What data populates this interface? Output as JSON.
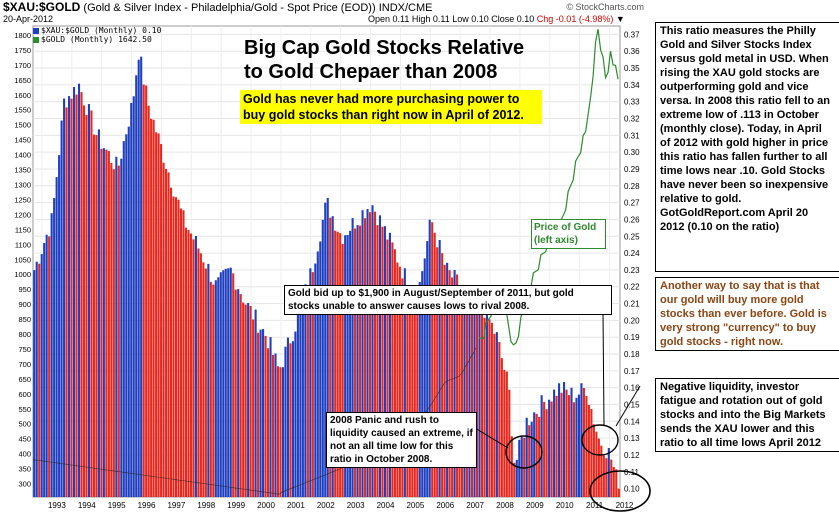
{
  "header": {
    "symbol": "$XAU:$GOLD",
    "description": "(Gold & Silver Index - Philadelphia/Gold - Spot Price (EOD))",
    "exchange": "INDX/CME",
    "brand": "© StockCharts.com",
    "date": "20-Apr-2012",
    "ohlc": "Open 0.11  High 0.11  Low 0.10  Close 0.10",
    "change": "Chg -0.01 (-4.98%)",
    "change_symbol": "▼"
  },
  "legend": [
    {
      "label": "$XAU:$GOLD (Monthly) 0.10",
      "color": "#1f3fbf"
    },
    {
      "label": "$GOLD (Monthly) 1642.50",
      "color": "#2e8b2e"
    }
  ],
  "annotations": {
    "main_title": "Big Cap Gold Stocks Relative to Gold Chepaer than 2008",
    "yellow_note": "Gold has never had more purchasing power to buy gold stocks than right now in April of 2012.",
    "gold_label": "Price of Gold (left axis)",
    "note_1900": "Gold bid up to $1,900 in August/September of 2011, but gold stocks unable to answer causes lows to rival 2008.",
    "note_2008": "2008 Panic and rush to liquidity caused an extreme, if not an all time low for this ratio in October 2008."
  },
  "side_notes": [
    "This ratio measures the Philly Gold and Silver Stocks Index versus gold metal in USD. When rising the XAU gold stocks are outperforming gold and vice versa. In 2008 this ratio fell to an extreme low of .113 in October (monthly close). Today, in April of 2012 with gold higher in price this ratio has fallen further to all time lows near .10. Gold Stocks have never been so inexpensive relative to gold. GotGoldReport.com April 20 2012 (0.10 on the ratio)",
    "Another way to say that is that our gold will buy more gold stocks than ever before. Gold is very strong \"currency\" to buy gold stocks - right now.",
    "Negative liquidity, investor fatigue and rotation out of gold stocks and into the Big Markets sends the XAU lower and this ratio to all time lows April 2012"
  ],
  "colors": {
    "up_bar": "#1f3fbf",
    "down_bar": "#e8281e",
    "gold_line": "#2e8b2e",
    "ratio_line": "#222222"
  },
  "chart_data": {
    "type": "bar",
    "title": "$XAU:$GOLD (Monthly)",
    "x_range": [
      "1992-09",
      "2012-04"
    ],
    "x_ticks": [
      "1993",
      "1994",
      "1995",
      "1996",
      "1997",
      "1998",
      "1999",
      "2000",
      "2001",
      "2002",
      "2003",
      "2004",
      "2005",
      "2006",
      "2007",
      "2008",
      "2009",
      "2010",
      "2011",
      "2012"
    ],
    "y_right_ticks": [
      0.1,
      0.11,
      0.12,
      0.13,
      0.14,
      0.15,
      0.16,
      0.17,
      0.18,
      0.19,
      0.2,
      0.21,
      0.22,
      0.23,
      0.24,
      0.25,
      0.26,
      0.27,
      0.28,
      0.29,
      0.3,
      0.31,
      0.32,
      0.33,
      0.34,
      0.35,
      0.36,
      0.37
    ],
    "y_right_range": [
      0.095,
      0.375
    ],
    "y_left_ticks": [
      300,
      350,
      400,
      450,
      500,
      550,
      600,
      650,
      700,
      750,
      800,
      850,
      900,
      950,
      1000,
      1050,
      1100,
      1150,
      1200,
      1250,
      1300,
      1350,
      1400,
      1450,
      1500,
      1550,
      1600,
      1650,
      1700,
      1750,
      1800
    ],
    "y_left_range": [
      255,
      1830
    ],
    "ratio_anchors": [
      {
        "t": 1992.7,
        "v": 0.23
      },
      {
        "t": 1993.3,
        "v": 0.26
      },
      {
        "t": 1993.7,
        "v": 0.33
      },
      {
        "t": 1994.2,
        "v": 0.34
      },
      {
        "t": 1994.8,
        "v": 0.31
      },
      {
        "t": 1995.5,
        "v": 0.29
      },
      {
        "t": 1996.0,
        "v": 0.33
      },
      {
        "t": 1996.2,
        "v": 0.36
      },
      {
        "t": 1996.5,
        "v": 0.33
      },
      {
        "t": 1997.0,
        "v": 0.3
      },
      {
        "t": 1997.7,
        "v": 0.26
      },
      {
        "t": 1998.3,
        "v": 0.24
      },
      {
        "t": 1998.8,
        "v": 0.22
      },
      {
        "t": 1999.3,
        "v": 0.23
      },
      {
        "t": 1999.8,
        "v": 0.21
      },
      {
        "t": 2000.5,
        "v": 0.19
      },
      {
        "t": 2000.9,
        "v": 0.17
      },
      {
        "t": 2001.5,
        "v": 0.2
      },
      {
        "t": 2002.0,
        "v": 0.23
      },
      {
        "t": 2002.5,
        "v": 0.27
      },
      {
        "t": 2003.0,
        "v": 0.25
      },
      {
        "t": 2003.5,
        "v": 0.26
      },
      {
        "t": 2004.0,
        "v": 0.27
      },
      {
        "t": 2004.8,
        "v": 0.24
      },
      {
        "t": 2005.5,
        "v": 0.21
      },
      {
        "t": 2006.0,
        "v": 0.26
      },
      {
        "t": 2006.5,
        "v": 0.23
      },
      {
        "t": 2007.0,
        "v": 0.22
      },
      {
        "t": 2007.7,
        "v": 0.21
      },
      {
        "t": 2008.2,
        "v": 0.19
      },
      {
        "t": 2008.6,
        "v": 0.16
      },
      {
        "t": 2008.8,
        "v": 0.113
      },
      {
        "t": 2009.2,
        "v": 0.14
      },
      {
        "t": 2009.7,
        "v": 0.15
      },
      {
        "t": 2010.3,
        "v": 0.16
      },
      {
        "t": 2010.8,
        "v": 0.155
      },
      {
        "t": 2011.2,
        "v": 0.16
      },
      {
        "t": 2011.6,
        "v": 0.13
      },
      {
        "t": 2012.0,
        "v": 0.12
      },
      {
        "t": 2012.3,
        "v": 0.1
      }
    ],
    "gold_anchors": [
      {
        "t": 2003.0,
        "v": 350
      },
      {
        "t": 2004.0,
        "v": 410
      },
      {
        "t": 2005.0,
        "v": 430
      },
      {
        "t": 2006.0,
        "v": 560
      },
      {
        "t": 2006.5,
        "v": 640
      },
      {
        "t": 2007.0,
        "v": 660
      },
      {
        "t": 2007.8,
        "v": 800
      },
      {
        "t": 2008.2,
        "v": 930
      },
      {
        "t": 2008.5,
        "v": 880
      },
      {
        "t": 2008.8,
        "v": 740
      },
      {
        "t": 2009.2,
        "v": 920
      },
      {
        "t": 2009.9,
        "v": 1100
      },
      {
        "t": 2010.3,
        "v": 1130
      },
      {
        "t": 2010.9,
        "v": 1380
      },
      {
        "t": 2011.3,
        "v": 1520
      },
      {
        "t": 2011.6,
        "v": 1830
      },
      {
        "t": 2011.9,
        "v": 1640
      },
      {
        "t": 2012.0,
        "v": 1750
      },
      {
        "t": 2012.3,
        "v": 1642.5
      }
    ]
  }
}
